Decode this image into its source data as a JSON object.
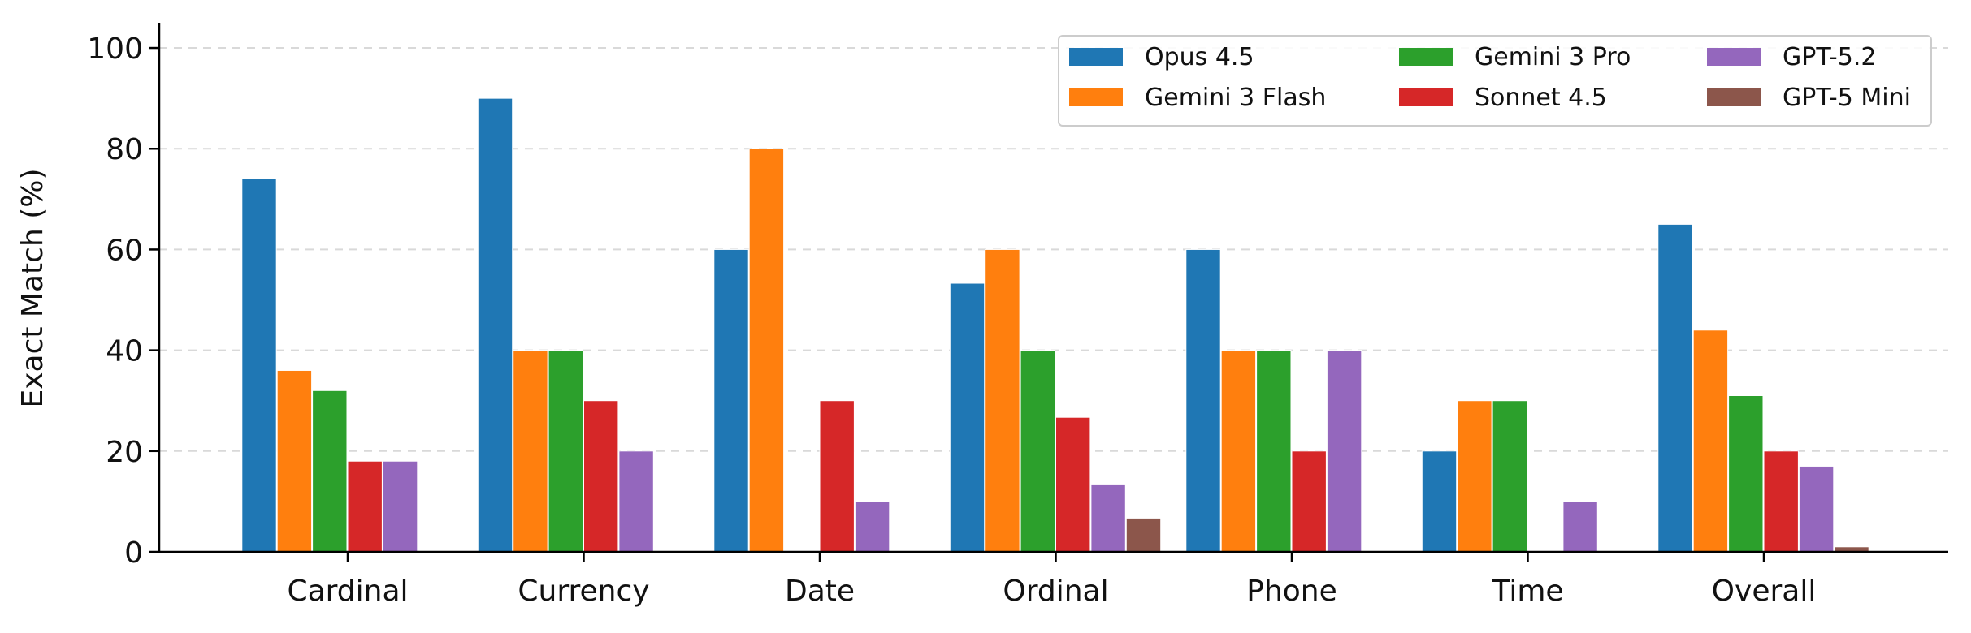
{
  "chart_data": {
    "type": "bar",
    "title": "",
    "xlabel": "",
    "ylabel": "Exact Match (%)",
    "ylim": [
      0,
      105
    ],
    "yticks": [
      0,
      20,
      40,
      60,
      80,
      100
    ],
    "grid": "horizontal dashed",
    "legend_position": "top-right",
    "categories": [
      "Cardinal",
      "Currency",
      "Date",
      "Ordinal",
      "Phone",
      "Time",
      "Overall"
    ],
    "series": [
      {
        "name": "Opus 4.5",
        "color": "#1f77b4",
        "values": [
          74,
          90,
          60,
          53.3,
          60,
          20,
          65
        ]
      },
      {
        "name": "Gemini 3 Flash",
        "color": "#ff7f0e",
        "values": [
          36,
          40,
          80,
          60,
          40,
          30,
          44
        ]
      },
      {
        "name": "Gemini 3 Pro",
        "color": "#2ca02c",
        "values": [
          32,
          40,
          0,
          40,
          40,
          30,
          31
        ]
      },
      {
        "name": "Sonnet 4.5",
        "color": "#d62728",
        "values": [
          18,
          30,
          30,
          26.7,
          20,
          0,
          20
        ]
      },
      {
        "name": "GPT-5.2",
        "color": "#9467bd",
        "values": [
          18,
          20,
          10,
          13.3,
          40,
          10,
          17
        ]
      },
      {
        "name": "GPT-5 Mini",
        "color": "#8c564b",
        "values": [
          0,
          0,
          0,
          6.7,
          0,
          0,
          1
        ]
      }
    ]
  }
}
